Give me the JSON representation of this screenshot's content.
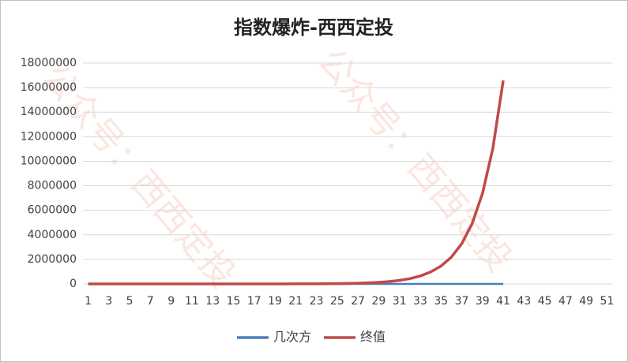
{
  "chart_data": {
    "type": "line",
    "title": "指数爆炸-西西定投",
    "watermark": "公众号：西西定投",
    "categories": [
      1,
      null,
      3,
      null,
      5,
      null,
      7,
      null,
      9,
      null,
      11,
      null,
      13,
      null,
      15,
      null,
      17,
      null,
      19,
      null,
      21,
      null,
      23,
      null,
      25,
      null,
      27,
      null,
      29,
      null,
      31,
      null,
      33,
      null,
      35,
      null,
      37,
      null,
      39,
      null,
      41,
      null,
      43,
      null,
      45,
      null,
      47,
      null,
      49,
      null,
      51
    ],
    "series": [
      {
        "name": "几次方",
        "color": "#4a7ebb",
        "values": [
          1,
          2,
          3,
          4,
          5,
          6,
          7,
          8,
          9,
          10,
          11,
          12,
          13,
          14,
          15,
          16,
          17,
          18,
          19,
          20,
          21,
          22,
          23,
          24,
          25,
          26,
          27,
          28,
          29,
          30,
          31,
          32,
          33,
          34,
          35,
          36,
          37,
          38,
          39,
          40,
          41,
          null,
          null,
          null,
          null,
          null,
          null,
          null,
          null,
          null,
          null
        ]
      },
      {
        "name": "终值",
        "color": "#be4b48",
        "values": [
          1.5,
          2.25,
          3.375,
          5.0625,
          7.59,
          11.39,
          17.09,
          25.63,
          38.44,
          57.67,
          86.5,
          129.7,
          194.6,
          291.9,
          437.9,
          656.8,
          985.3,
          1477.9,
          2216.8,
          3325.3,
          4988,
          7482,
          11223,
          16834,
          25251,
          37877,
          56815,
          85223,
          127834,
          191751,
          287627,
          431440,
          647160,
          970740,
          1456110,
          2184164,
          3276247,
          4914370,
          7371555,
          11057332,
          16585998,
          null,
          null,
          null,
          null,
          null,
          null,
          null,
          null,
          null,
          null
        ]
      }
    ],
    "ylim": [
      0,
      18000000
    ],
    "yticks": [
      0,
      2000000,
      4000000,
      6000000,
      8000000,
      10000000,
      12000000,
      14000000,
      16000000,
      18000000
    ],
    "grid": true,
    "legend": "bottom"
  }
}
